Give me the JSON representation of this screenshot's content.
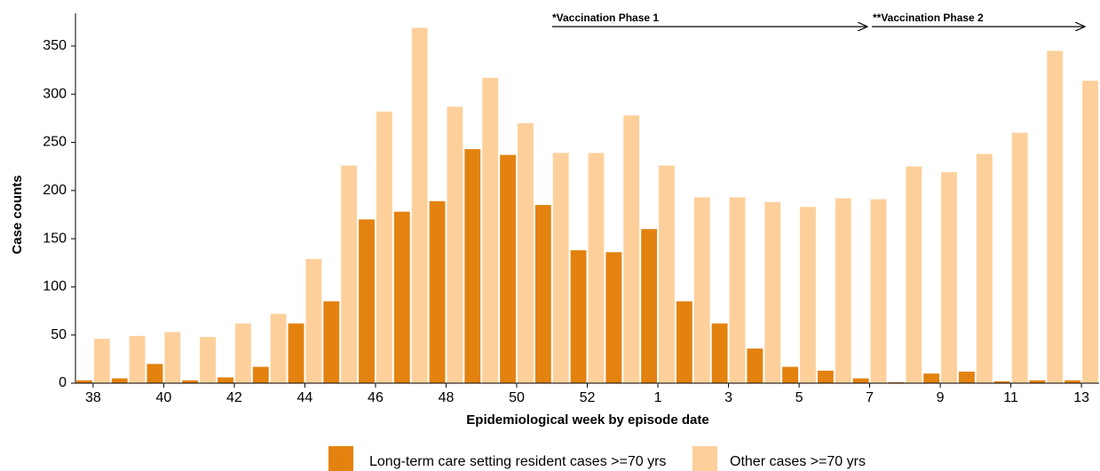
{
  "chart_data": {
    "type": "bar",
    "x_label": "Epidemiological week by episode date",
    "y_label": "Case counts",
    "annotations": [
      "*Vaccination Phase 1",
      "**Vaccination Phase 2"
    ],
    "categories": [
      "38",
      null,
      "40",
      null,
      "42",
      null,
      "44",
      null,
      "46",
      null,
      "48",
      null,
      "50",
      null,
      "52",
      null,
      "1",
      null,
      "3",
      null,
      "5",
      null,
      "7",
      null,
      "9",
      null,
      "11",
      null,
      "13"
    ],
    "series": [
      {
        "name": "Long-term care setting resident cases >=70 yrs",
        "color": "#e3820f",
        "values": [
          3,
          5,
          20,
          3,
          6,
          17,
          62,
          85,
          170,
          178,
          189,
          243,
          237,
          185,
          138,
          136,
          160,
          85,
          62,
          36,
          17,
          13,
          5,
          1,
          10,
          12,
          2,
          3,
          3
        ]
      },
      {
        "name": "Other cases >=70 yrs",
        "color": "#fdd09b",
        "values": [
          46,
          49,
          53,
          48,
          62,
          72,
          129,
          226,
          282,
          369,
          287,
          317,
          270,
          239,
          239,
          278,
          226,
          193,
          193,
          188,
          183,
          192,
          191,
          225,
          219,
          238,
          260,
          345,
          314
        ]
      }
    ],
    "ylim": [
      0,
      384
    ],
    "yticks": [
      0,
      50,
      100,
      150,
      200,
      250,
      300,
      350
    ],
    "grid": false
  }
}
